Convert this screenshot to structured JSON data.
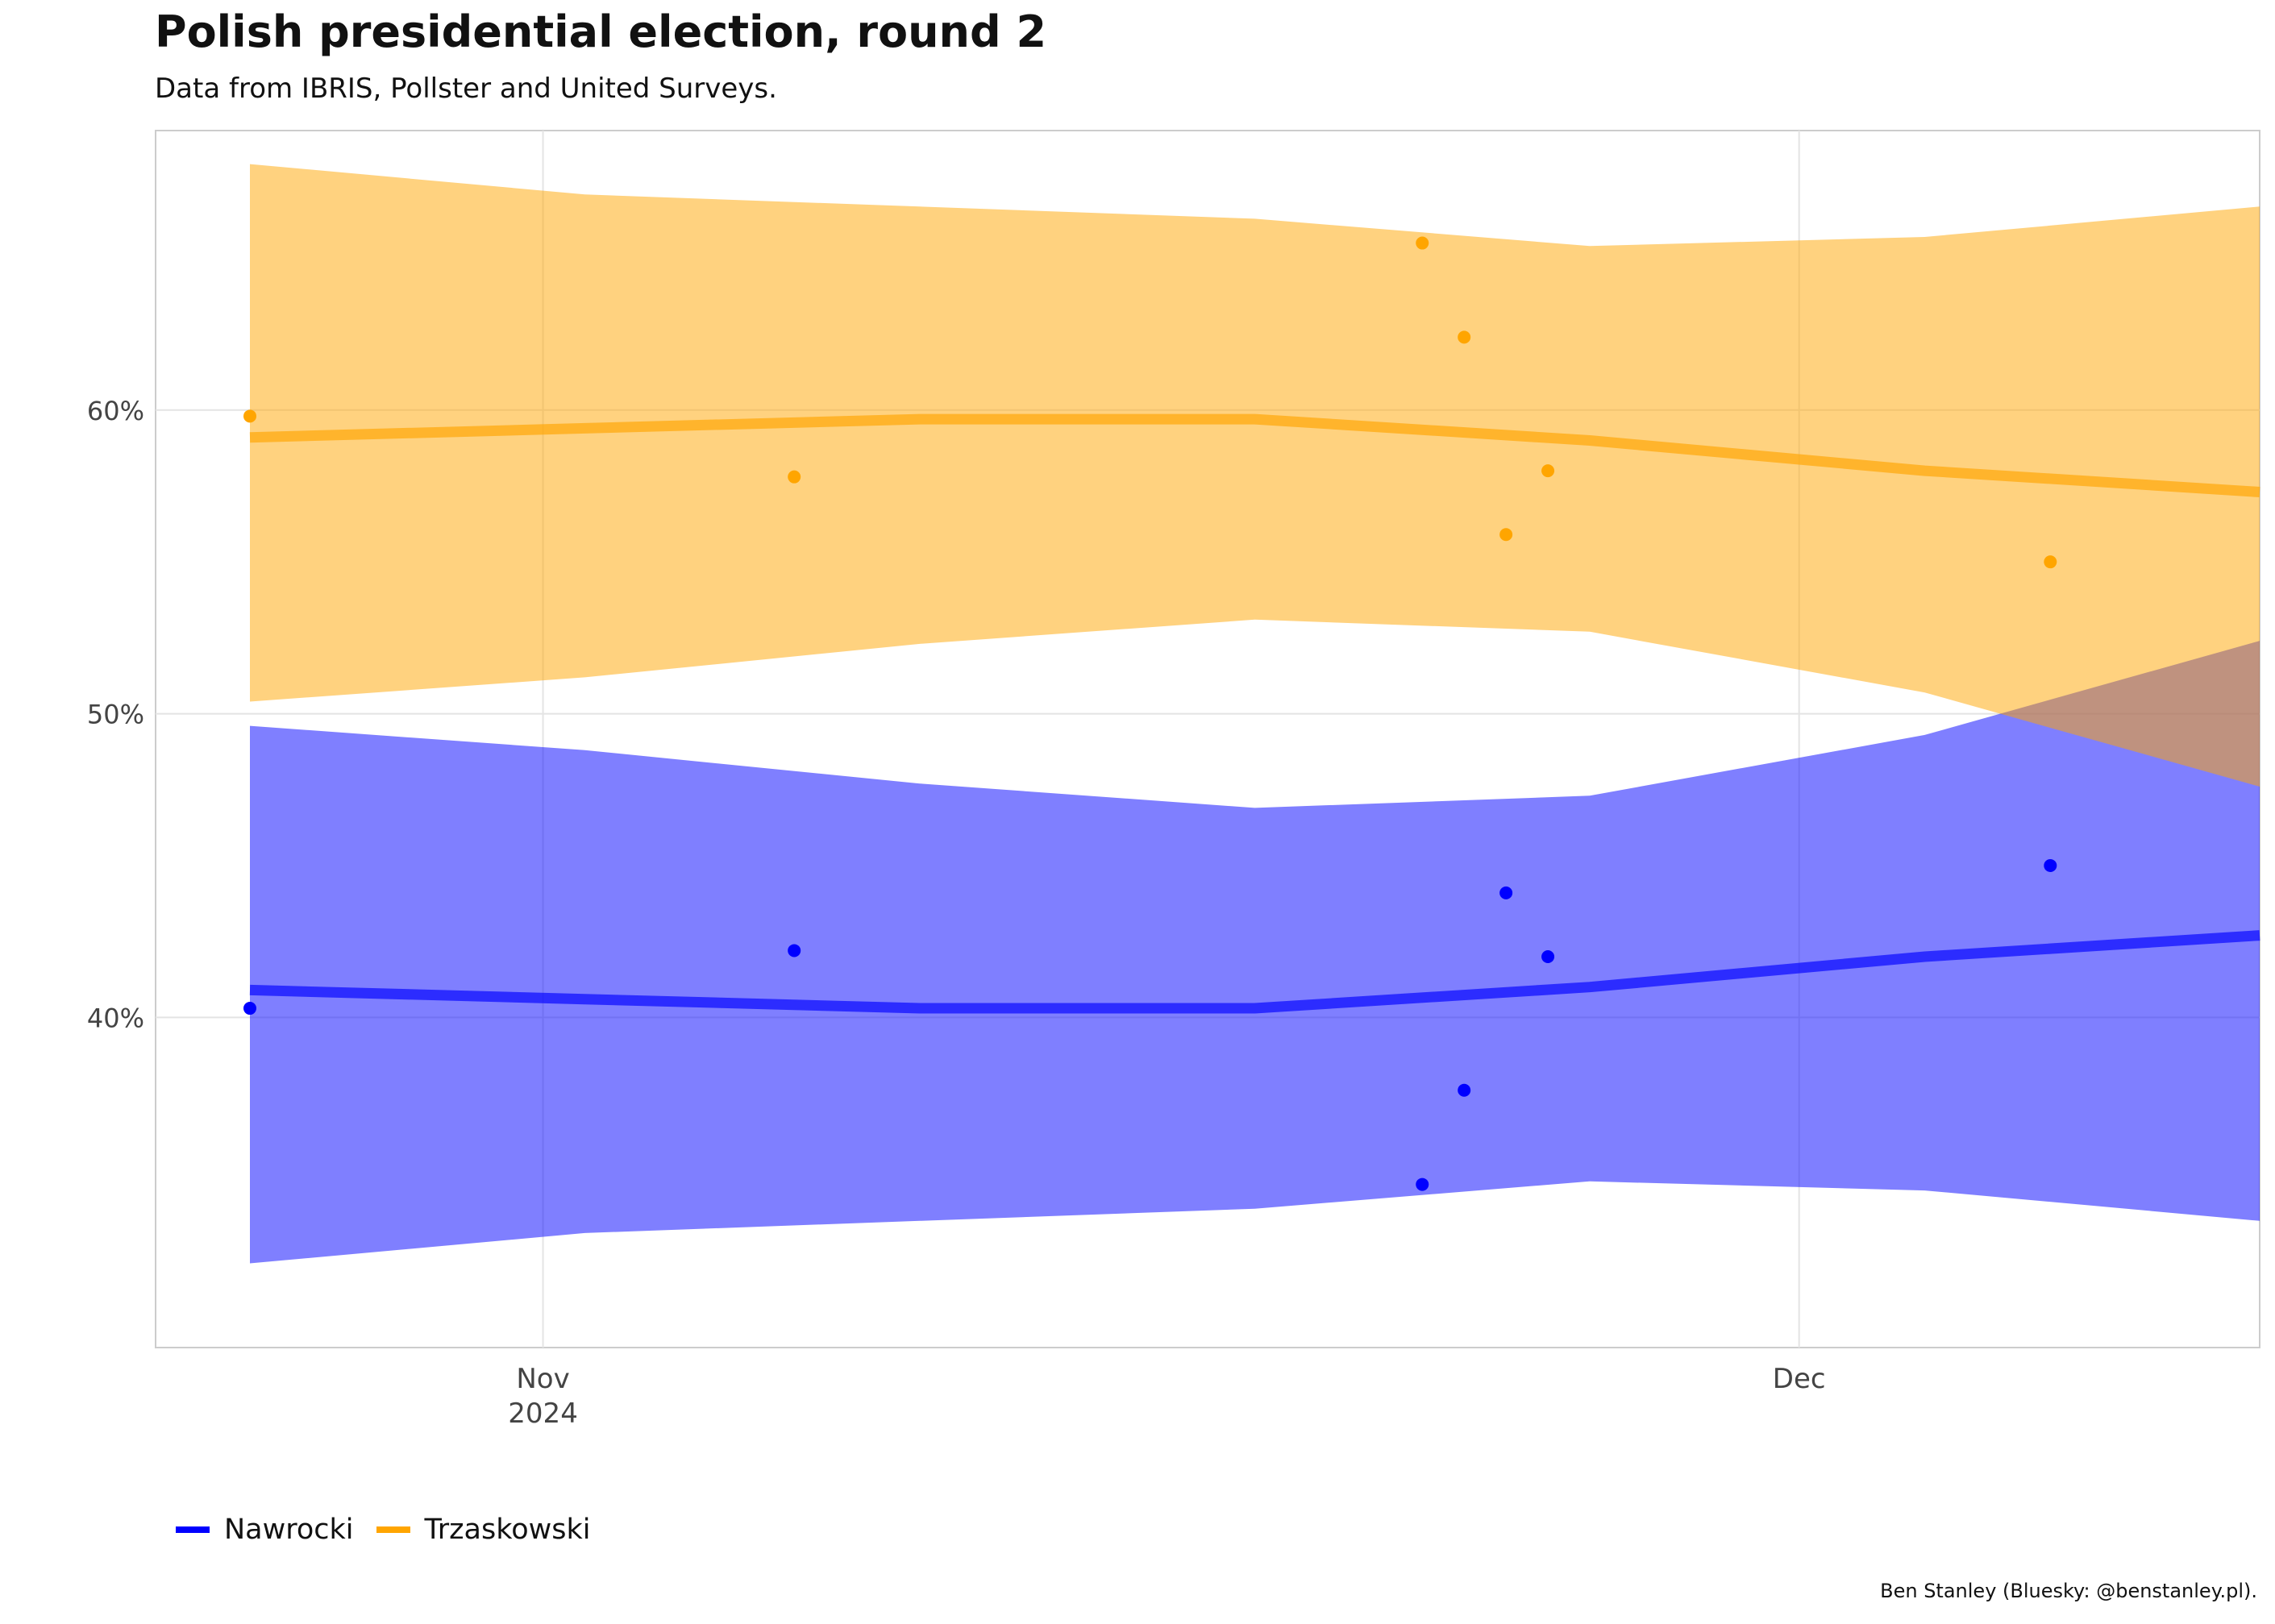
{
  "chart_data": {
    "type": "line",
    "title": "Polish presidential election, round 2",
    "subtitle": "Data from IBRIS, Pollster and United Surveys.",
    "caption": "Ben Stanley (Bluesky: @benstanley.pl).",
    "xlabel": "",
    "ylabel": "",
    "xlim": [
      "2024-10-25",
      "2024-12-12"
    ],
    "ylim": [
      30,
      70
    ],
    "y_ticks": [
      40,
      50,
      60
    ],
    "y_tick_labels": [
      "40%",
      "50%",
      "60%"
    ],
    "x_ticks": [
      "2024-11-01",
      "2024-12-01"
    ],
    "x_tick_labels": [
      [
        "Nov",
        "2024"
      ],
      [
        "Dec"
      ]
    ],
    "grid": true,
    "legend_position": "bottom-left",
    "series": [
      {
        "name": "Nawrocki",
        "color": "#0000ff",
        "line": [
          {
            "x": "2024-10-25",
            "y": 40.9
          },
          {
            "x": "2024-11-02",
            "y": 40.6
          },
          {
            "x": "2024-11-10",
            "y": 40.3
          },
          {
            "x": "2024-11-18",
            "y": 40.3
          },
          {
            "x": "2024-11-26",
            "y": 41.0
          },
          {
            "x": "2024-12-04",
            "y": 42.0
          },
          {
            "x": "2024-12-12",
            "y": 42.7
          }
        ],
        "ribbon": [
          {
            "x": "2024-10-25",
            "lo": 31.9,
            "hi": 49.6
          },
          {
            "x": "2024-11-02",
            "lo": 32.9,
            "hi": 48.8
          },
          {
            "x": "2024-11-10",
            "lo": 33.3,
            "hi": 47.7
          },
          {
            "x": "2024-11-18",
            "lo": 33.7,
            "hi": 46.9
          },
          {
            "x": "2024-11-26",
            "lo": 34.6,
            "hi": 47.3
          },
          {
            "x": "2024-12-04",
            "lo": 34.3,
            "hi": 49.3
          },
          {
            "x": "2024-12-12",
            "lo": 33.3,
            "hi": 52.4
          }
        ],
        "points": [
          {
            "x": "2024-10-25",
            "y": 40.3
          },
          {
            "x": "2024-11-07",
            "y": 42.2
          },
          {
            "x": "2024-11-22",
            "y": 34.5
          },
          {
            "x": "2024-11-23",
            "y": 37.6
          },
          {
            "x": "2024-11-24",
            "y": 44.1
          },
          {
            "x": "2024-11-25",
            "y": 42.0
          },
          {
            "x": "2024-12-07",
            "y": 45.0
          }
        ]
      },
      {
        "name": "Trzaskowski",
        "color": "#ffa500",
        "line": [
          {
            "x": "2024-10-25",
            "y": 59.1
          },
          {
            "x": "2024-11-02",
            "y": 59.4
          },
          {
            "x": "2024-11-10",
            "y": 59.7
          },
          {
            "x": "2024-11-18",
            "y": 59.7
          },
          {
            "x": "2024-11-26",
            "y": 59.0
          },
          {
            "x": "2024-12-04",
            "y": 58.0
          },
          {
            "x": "2024-12-12",
            "y": 57.3
          }
        ],
        "ribbon": [
          {
            "x": "2024-10-25",
            "lo": 50.4,
            "hi": 68.1
          },
          {
            "x": "2024-11-02",
            "lo": 51.2,
            "hi": 67.1
          },
          {
            "x": "2024-11-10",
            "lo": 52.3,
            "hi": 66.7
          },
          {
            "x": "2024-11-18",
            "lo": 53.1,
            "hi": 66.3
          },
          {
            "x": "2024-11-26",
            "lo": 52.7,
            "hi": 65.4
          },
          {
            "x": "2024-12-04",
            "lo": 50.7,
            "hi": 65.7
          },
          {
            "x": "2024-12-12",
            "lo": 47.6,
            "hi": 66.7
          }
        ],
        "points": [
          {
            "x": "2024-10-25",
            "y": 59.8
          },
          {
            "x": "2024-11-07",
            "y": 57.8
          },
          {
            "x": "2024-11-22",
            "y": 65.5
          },
          {
            "x": "2024-11-23",
            "y": 62.4
          },
          {
            "x": "2024-11-24",
            "y": 55.9
          },
          {
            "x": "2024-11-25",
            "y": 58.0
          },
          {
            "x": "2024-12-07",
            "y": 55.0
          }
        ]
      }
    ]
  },
  "legend": {
    "items": [
      {
        "label": "Nawrocki",
        "color": "#0000ff"
      },
      {
        "label": "Trzaskowski",
        "color": "#ffa500"
      }
    ]
  }
}
